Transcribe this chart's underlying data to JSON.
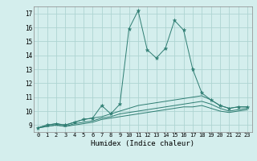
{
  "background_color": "#d4eeed",
  "grid_color": "#aed4d2",
  "line_color": "#2e7d72",
  "xlabel": "Humidex (Indice chaleur)",
  "ylim": [
    8.5,
    17.5
  ],
  "xlim": [
    -0.5,
    23.5
  ],
  "yticks": [
    9,
    10,
    11,
    12,
    13,
    14,
    15,
    16,
    17
  ],
  "xticks": [
    0,
    1,
    2,
    3,
    4,
    5,
    6,
    7,
    8,
    9,
    10,
    11,
    12,
    13,
    14,
    15,
    16,
    17,
    18,
    19,
    20,
    21,
    22,
    23
  ],
  "line1_x": [
    0,
    1,
    2,
    3,
    4,
    5,
    6,
    7,
    8,
    9,
    10,
    11,
    12,
    13,
    14,
    15,
    16,
    17,
    18,
    19,
    20,
    21,
    22,
    23
  ],
  "line1_y": [
    8.8,
    9.0,
    9.1,
    9.0,
    9.2,
    9.4,
    9.5,
    10.4,
    9.8,
    10.5,
    15.9,
    17.2,
    14.4,
    13.8,
    14.5,
    16.5,
    15.8,
    13.0,
    11.3,
    10.8,
    10.4,
    10.2,
    10.3,
    10.3
  ],
  "line2_x": [
    0,
    1,
    2,
    3,
    4,
    5,
    6,
    7,
    8,
    9,
    10,
    11,
    12,
    13,
    14,
    15,
    16,
    17,
    18,
    19,
    20,
    21,
    22,
    23
  ],
  "line2_y": [
    8.8,
    9.0,
    9.1,
    9.0,
    9.2,
    9.4,
    9.5,
    9.6,
    9.8,
    10.0,
    10.2,
    10.4,
    10.5,
    10.6,
    10.7,
    10.8,
    10.9,
    11.0,
    11.1,
    10.8,
    10.4,
    10.2,
    10.3,
    10.3
  ],
  "line3_x": [
    0,
    1,
    2,
    3,
    4,
    5,
    6,
    7,
    8,
    9,
    10,
    11,
    12,
    13,
    14,
    15,
    16,
    17,
    18,
    19,
    20,
    21,
    22,
    23
  ],
  "line3_y": [
    8.8,
    8.9,
    9.0,
    8.9,
    9.1,
    9.2,
    9.3,
    9.5,
    9.6,
    9.8,
    9.9,
    10.0,
    10.1,
    10.2,
    10.3,
    10.4,
    10.5,
    10.6,
    10.7,
    10.5,
    10.2,
    10.0,
    10.1,
    10.2
  ],
  "line4_x": [
    0,
    1,
    2,
    3,
    4,
    5,
    6,
    7,
    8,
    9,
    10,
    11,
    12,
    13,
    14,
    15,
    16,
    17,
    18,
    19,
    20,
    21,
    22,
    23
  ],
  "line4_y": [
    8.8,
    8.9,
    9.0,
    8.9,
    9.0,
    9.1,
    9.2,
    9.4,
    9.5,
    9.6,
    9.7,
    9.8,
    9.9,
    10.0,
    10.1,
    10.2,
    10.3,
    10.3,
    10.4,
    10.2,
    10.0,
    9.9,
    10.0,
    10.1
  ],
  "figsize": [
    3.2,
    2.0
  ],
  "dpi": 100
}
